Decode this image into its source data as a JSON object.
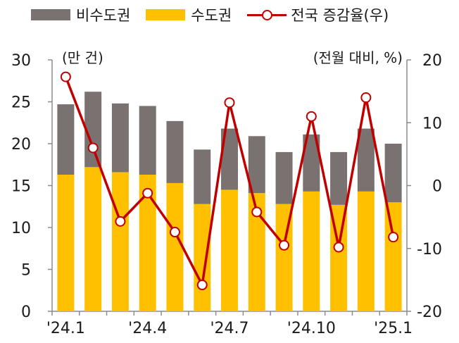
{
  "legend": {
    "nonmetro": "비수도권",
    "metro": "수도권",
    "growth": "전국 증감율(우)"
  },
  "units": {
    "left": "(만 건)",
    "right": "(전월 대비, %)"
  },
  "colors": {
    "nonmetro": "#7a7271",
    "metro": "#ffc000",
    "growth": "#c00000",
    "axis": "#8c8c8c"
  },
  "chart_data": {
    "type": "bar",
    "stacked": true,
    "x_tick_labels": [
      "'24.1",
      "'24.4",
      "'24.7",
      "'24.10",
      "'25.1"
    ],
    "x_tick_indices": [
      0,
      3,
      6,
      9,
      12
    ],
    "categories": [
      "'24.1",
      "'24.2",
      "'24.3",
      "'24.4",
      "'24.5",
      "'24.6",
      "'24.7",
      "'24.8",
      "'24.9",
      "'24.10",
      "'24.11",
      "'24.12",
      "'25.1"
    ],
    "series": [
      {
        "name": "수도권",
        "axis": "left",
        "type": "bar",
        "values": [
          16.3,
          17.2,
          16.6,
          16.3,
          15.3,
          12.8,
          14.5,
          14.1,
          12.8,
          14.3,
          12.7,
          14.3,
          13.0
        ]
      },
      {
        "name": "비수도권",
        "axis": "left",
        "type": "bar",
        "values": [
          8.4,
          9.0,
          8.2,
          8.2,
          7.4,
          6.5,
          7.3,
          6.8,
          6.2,
          6.8,
          6.3,
          7.5,
          7.0
        ]
      },
      {
        "name": "전국 증감율(우)",
        "axis": "right",
        "type": "line",
        "values": [
          17.3,
          6.0,
          -5.7,
          -1.2,
          -7.4,
          -15.8,
          13.2,
          -4.2,
          -9.5,
          11.0,
          -9.8,
          14.0,
          -8.2
        ]
      }
    ],
    "y_left": {
      "ticks": [
        0,
        5,
        10,
        15,
        20,
        25,
        30
      ],
      "ylim": [
        0,
        30
      ]
    },
    "y_right": {
      "ticks": [
        -20,
        -10,
        0,
        10,
        20
      ],
      "ylim": [
        -20,
        20
      ]
    },
    "grid": false,
    "legend_position": "top"
  }
}
